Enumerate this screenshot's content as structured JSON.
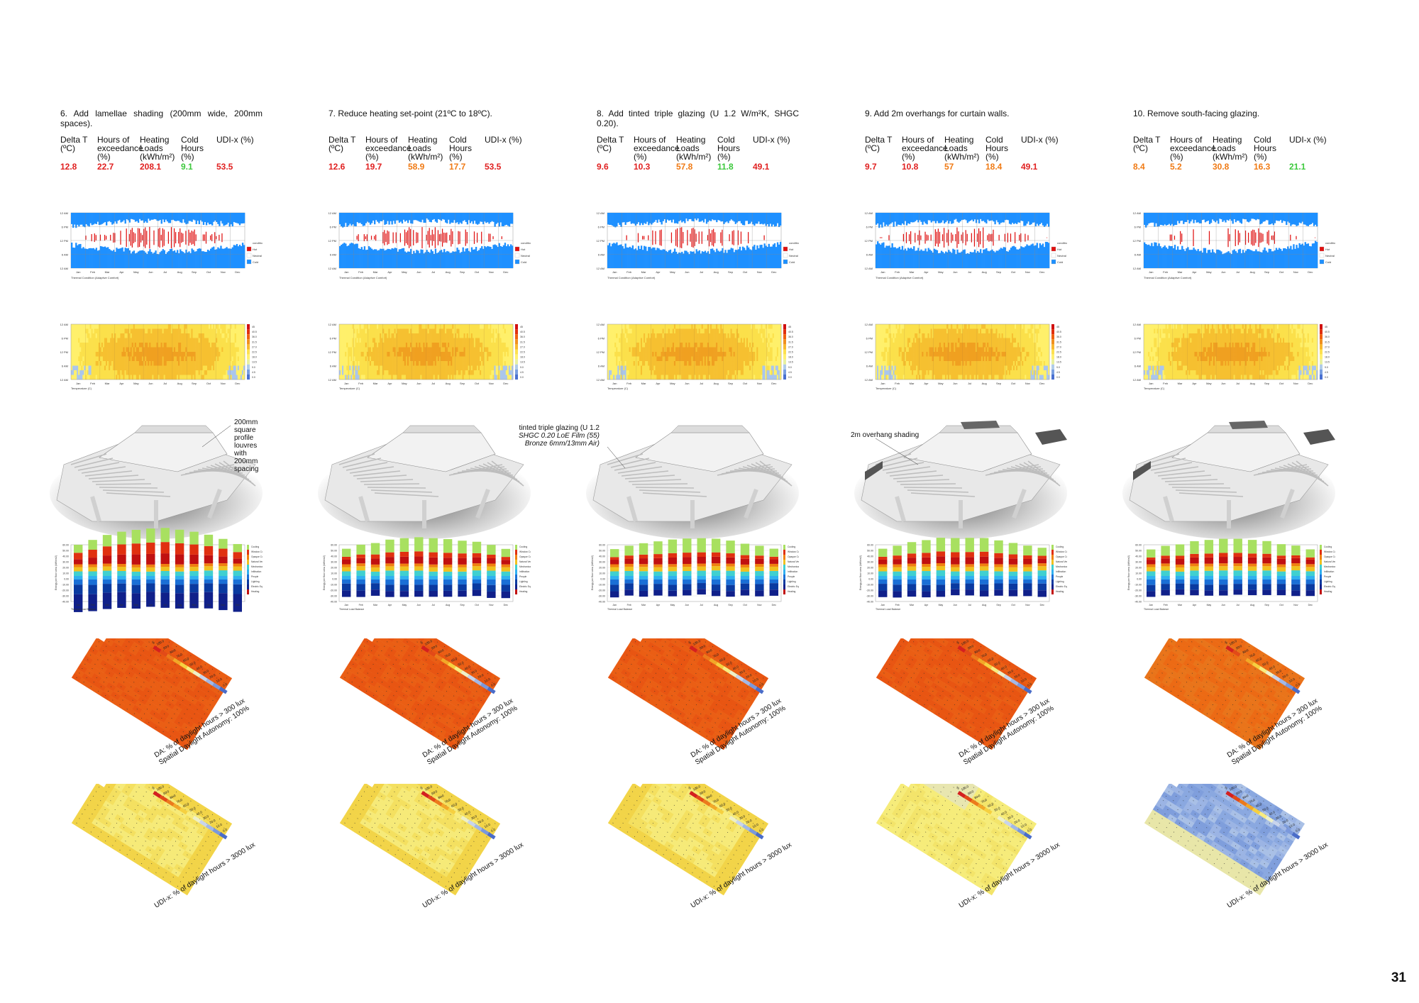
{
  "page_number": "31",
  "metric_headers": [
    {
      "key": "dt",
      "lines": [
        "Delta T",
        "(ºC)"
      ]
    },
    {
      "key": "hoe",
      "lines": [
        "Hours of",
        "exceedance",
        "(%)"
      ]
    },
    {
      "key": "hl",
      "lines": [
        "Heating",
        "Loads",
        "(kWh/m²)"
      ]
    },
    {
      "key": "ch",
      "lines": [
        "Cold",
        "Hours",
        "(%)"
      ]
    },
    {
      "key": "udi",
      "lines": [
        "UDI-x (%)"
      ]
    }
  ],
  "colors": {
    "red": "#e02020",
    "orange": "#f07a14",
    "green": "#3cc83c",
    "comfort_blue": "#1e90ff",
    "cold_blue": "#1a6fd6",
    "hot_red": "#e01010"
  },
  "variants": [
    {
      "title": "6. Add lamellae shading (200mm wide, 200mm spaces).",
      "values": [
        "12.8",
        "22.7",
        "208.1",
        "9.1",
        "53.5"
      ],
      "value_colors": [
        "red",
        "red",
        "red",
        "green",
        "red"
      ],
      "callout": [
        "200mm square profile louvres",
        "with 200mm spacing"
      ],
      "hot": 0.65,
      "cold": 0.3,
      "yellow": 0.75,
      "energy_scale": 1.0,
      "udi": "uniform",
      "overhangs": false
    },
    {
      "title": "7. Reduce heating set-point (21ºC to 18ºC).",
      "values": [
        "12.6",
        "19.7",
        "58.9",
        "17.7",
        "53.5"
      ],
      "value_colors": [
        "red",
        "red",
        "orange",
        "orange",
        "red"
      ],
      "callout": [],
      "hot": 0.6,
      "cold": 0.35,
      "yellow": 0.8,
      "energy_scale": 0.45,
      "udi": "uniform",
      "overhangs": false
    },
    {
      "title": "8. Add tinted triple glazing (U 1.2 W/m²K, SHGC 0.20).",
      "values": [
        "9.6",
        "10.3",
        "57.8",
        "11.8",
        "49.1"
      ],
      "value_colors": [
        "red",
        "red",
        "orange",
        "green",
        "red"
      ],
      "callout": [
        "tinted triple glazing (U 1.2",
        "SHGC 0.20 LoE Film (55)",
        "Bronze 6mm/13mm Air)"
      ],
      "hot": 0.45,
      "cold": 0.35,
      "yellow": 0.8,
      "energy_scale": 0.4,
      "udi": "uniform",
      "overhangs": false
    },
    {
      "title": "9. Add 2m overhangs for curtain walls.",
      "values": [
        "9.7",
        "10.8",
        "57",
        "18.4",
        "49.1"
      ],
      "value_colors": [
        "red",
        "red",
        "orange",
        "orange",
        "red"
      ],
      "callout": [
        "2m overhang shading"
      ],
      "hot": 0.5,
      "cold": 0.35,
      "yellow": 0.8,
      "energy_scale": 0.45,
      "udi": "light",
      "overhangs": true
    },
    {
      "title": "10. Remove south-facing glazing.",
      "values": [
        "8.4",
        "5.2",
        "30.8",
        "16.3",
        "21.1"
      ],
      "value_colors": [
        "orange",
        "orange",
        "orange",
        "orange",
        "green"
      ],
      "callout": [],
      "hot": 0.3,
      "cold": 0.4,
      "yellow": 0.85,
      "energy_scale": 0.35,
      "udi": "blue",
      "overhangs": true
    }
  ],
  "months": [
    "Jan",
    "Feb",
    "Mar",
    "Apr",
    "May",
    "Jun",
    "Jul",
    "Aug",
    "Sep",
    "Oct",
    "Nov",
    "Dec"
  ],
  "thermal_chart": {
    "y_ticks": [
      "12 AM",
      "6 PM",
      "12 PM",
      "6 AM",
      "12 AM"
    ],
    "x_caption": "Thermal Condition (Adaptive Comfort)",
    "legend": [
      "condition",
      "Hot",
      "Neutral",
      "Cold"
    ]
  },
  "temp_chart": {
    "y_ticks": [
      "12 AM",
      "6 PM",
      "12 PM",
      "6 AM",
      "12 AM"
    ],
    "x_caption": "Temperature (C)",
    "scale": [
      "45",
      "40.5",
      "36.0",
      "31.5",
      "27.0",
      "22.5",
      "18.0",
      "13.5",
      "9.0",
      "4.5",
      "0.0"
    ]
  },
  "energy_chart": {
    "y_ticks": [
      "60.00",
      "50.00",
      "40.00",
      "30.00",
      "20.00",
      "10.00",
      "0.00",
      "-10.00",
      "-20.00",
      "-30.00",
      "-40.00"
    ],
    "legend": [
      "Cooling",
      "Window Conduction",
      "Opaque Conduction",
      "Natural Ventilation",
      "Mechanical Ventilation",
      "Infiltration",
      "People",
      "Lighting",
      "Electric Equipment",
      "Heating"
    ],
    "x_caption": "Thermal Load Balance",
    "y_label": "Energy per floor area (kWh/m2)"
  },
  "da_panel": {
    "caption_lines": [
      "DA: % of daylight hours > 300 lux",
      "Spatial Daylight Autonomy: 100%"
    ]
  },
  "udi_panel": {
    "caption_lines": [
      "UDI-x: % of daylight hours > 3000 lux"
    ]
  },
  "daylight_scale": {
    "unit": "%",
    "labels": [
      "100.0",
      "90.0",
      "80.0",
      "70.0",
      "60.0",
      "50.0",
      "40.0",
      "30.0",
      "20.0",
      "10.0",
      "0.0"
    ]
  }
}
